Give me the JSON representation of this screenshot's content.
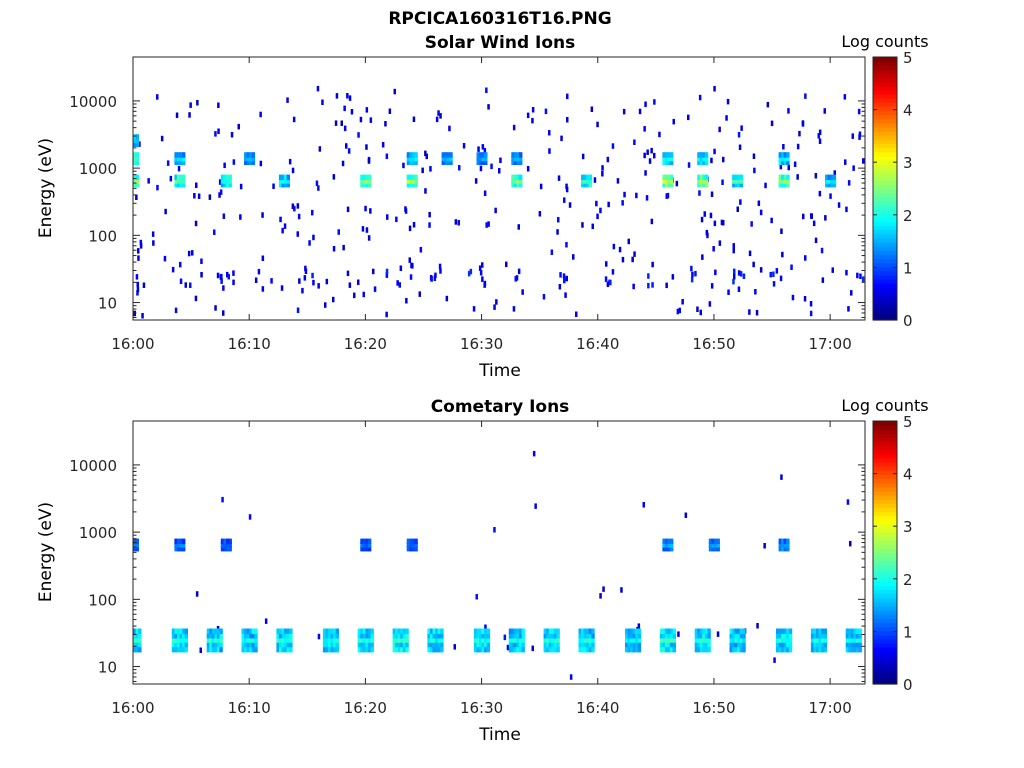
{
  "figure_title": "RPCICA160316T16.PNG",
  "colors": {
    "axis": "#262626",
    "background": "#ffffff",
    "colormap": "jet"
  },
  "chart_data": [
    {
      "type": "heatmap",
      "title": "Solar Wind Ions",
      "xlabel": "Time",
      "ylabel": "Energy (eV)",
      "x_ticks": [
        "16:00",
        "16:10",
        "16:20",
        "16:30",
        "16:40",
        "16:50",
        "17:00"
      ],
      "xlim": [
        "16:00",
        "17:03"
      ],
      "y_scale": "log",
      "y_ticks": [
        "10",
        "100",
        "1000",
        "10000"
      ],
      "ylim": [
        5.5,
        45000
      ],
      "colorbar": {
        "label": "Log counts",
        "ticks": [
          "0",
          "1",
          "2",
          "3",
          "4",
          "5"
        ],
        "range": [
          0,
          5
        ]
      },
      "bursts": [
        {
          "t": "16:00",
          "energy_ev": 650,
          "log_counts": 2.6
        },
        {
          "t": "16:00",
          "energy_ev": 1400,
          "log_counts": 2.4
        },
        {
          "t": "16:00",
          "energy_ev": 2600,
          "log_counts": 1.8
        },
        {
          "t": "16:04",
          "energy_ev": 650,
          "log_counts": 2.5
        },
        {
          "t": "16:04",
          "energy_ev": 1400,
          "log_counts": 1.8
        },
        {
          "t": "16:08",
          "energy_ev": 650,
          "log_counts": 2.2
        },
        {
          "t": "16:10",
          "energy_ev": 1400,
          "log_counts": 1.6
        },
        {
          "t": "16:13",
          "energy_ev": 650,
          "log_counts": 1.9
        },
        {
          "t": "16:20",
          "energy_ev": 650,
          "log_counts": 2.6
        },
        {
          "t": "16:24",
          "energy_ev": 650,
          "log_counts": 2.8
        },
        {
          "t": "16:24",
          "energy_ev": 1400,
          "log_counts": 1.8
        },
        {
          "t": "16:27",
          "energy_ev": 1400,
          "log_counts": 1.6
        },
        {
          "t": "16:30",
          "energy_ev": 1400,
          "log_counts": 1.5
        },
        {
          "t": "16:33",
          "energy_ev": 650,
          "log_counts": 2.6
        },
        {
          "t": "16:33",
          "energy_ev": 1400,
          "log_counts": 1.6
        },
        {
          "t": "16:39",
          "energy_ev": 650,
          "log_counts": 2.3
        },
        {
          "t": "16:46",
          "energy_ev": 650,
          "log_counts": 2.9
        },
        {
          "t": "16:46",
          "energy_ev": 1400,
          "log_counts": 2.0
        },
        {
          "t": "16:49",
          "energy_ev": 650,
          "log_counts": 2.8
        },
        {
          "t": "16:49",
          "energy_ev": 1400,
          "log_counts": 1.9
        },
        {
          "t": "16:52",
          "energy_ev": 650,
          "log_counts": 2.3
        },
        {
          "t": "16:56",
          "energy_ev": 650,
          "log_counts": 2.7
        },
        {
          "t": "16:56",
          "energy_ev": 1400,
          "log_counts": 1.9
        },
        {
          "t": "17:00",
          "energy_ev": 650,
          "log_counts": 1.9
        }
      ],
      "low_energy_band": {
        "energy_ev": 24,
        "log_counts": 0.8
      },
      "background": "sparse single counts (log counts ~0.5) across all energies"
    },
    {
      "type": "heatmap",
      "title": "Cometary Ions",
      "xlabel": "Time",
      "ylabel": "Energy (eV)",
      "x_ticks": [
        "16:00",
        "16:10",
        "16:20",
        "16:30",
        "16:40",
        "16:50",
        "17:00"
      ],
      "xlim": [
        "16:00",
        "17:03"
      ],
      "y_scale": "log",
      "y_ticks": [
        "10",
        "100",
        "1000",
        "10000"
      ],
      "ylim": [
        5.5,
        45000
      ],
      "colorbar": {
        "label": "Log counts",
        "ticks": [
          "0",
          "1",
          "2",
          "3",
          "4",
          "5"
        ],
        "range": [
          0,
          5
        ]
      },
      "bursts": [
        {
          "t": "16:00",
          "energy_ev": 25,
          "log_counts": 2.1
        },
        {
          "t": "16:04",
          "energy_ev": 25,
          "log_counts": 2.1
        },
        {
          "t": "16:07",
          "energy_ev": 25,
          "log_counts": 2.1
        },
        {
          "t": "16:10",
          "energy_ev": 25,
          "log_counts": 2.0
        },
        {
          "t": "16:13",
          "energy_ev": 25,
          "log_counts": 2.1
        },
        {
          "t": "16:17",
          "energy_ev": 25,
          "log_counts": 2.0
        },
        {
          "t": "16:20",
          "energy_ev": 25,
          "log_counts": 2.1
        },
        {
          "t": "16:23",
          "energy_ev": 25,
          "log_counts": 2.2
        },
        {
          "t": "16:26",
          "energy_ev": 25,
          "log_counts": 2.0
        },
        {
          "t": "16:30",
          "energy_ev": 25,
          "log_counts": 2.1
        },
        {
          "t": "16:33",
          "energy_ev": 25,
          "log_counts": 2.0
        },
        {
          "t": "16:36",
          "energy_ev": 25,
          "log_counts": 2.1
        },
        {
          "t": "16:39",
          "energy_ev": 25,
          "log_counts": 2.1
        },
        {
          "t": "16:43",
          "energy_ev": 25,
          "log_counts": 2.0
        },
        {
          "t": "16:46",
          "energy_ev": 25,
          "log_counts": 2.2
        },
        {
          "t": "16:49",
          "energy_ev": 25,
          "log_counts": 2.1
        },
        {
          "t": "16:52",
          "energy_ev": 25,
          "log_counts": 2.0
        },
        {
          "t": "16:56",
          "energy_ev": 25,
          "log_counts": 2.1
        },
        {
          "t": "16:59",
          "energy_ev": 25,
          "log_counts": 2.0
        },
        {
          "t": "17:02",
          "energy_ev": 25,
          "log_counts": 2.0
        },
        {
          "t": "16:00",
          "energy_ev": 650,
          "log_counts": 1.4
        },
        {
          "t": "16:04",
          "energy_ev": 650,
          "log_counts": 1.3
        },
        {
          "t": "16:08",
          "energy_ev": 650,
          "log_counts": 1.2
        },
        {
          "t": "16:20",
          "energy_ev": 650,
          "log_counts": 1.2
        },
        {
          "t": "16:24",
          "energy_ev": 650,
          "log_counts": 1.2
        },
        {
          "t": "16:46",
          "energy_ev": 650,
          "log_counts": 1.5
        },
        {
          "t": "16:50",
          "energy_ev": 650,
          "log_counts": 1.5
        },
        {
          "t": "16:56",
          "energy_ev": 650,
          "log_counts": 1.5
        }
      ],
      "background": "sparse single counts (log counts ~0.5)"
    }
  ]
}
